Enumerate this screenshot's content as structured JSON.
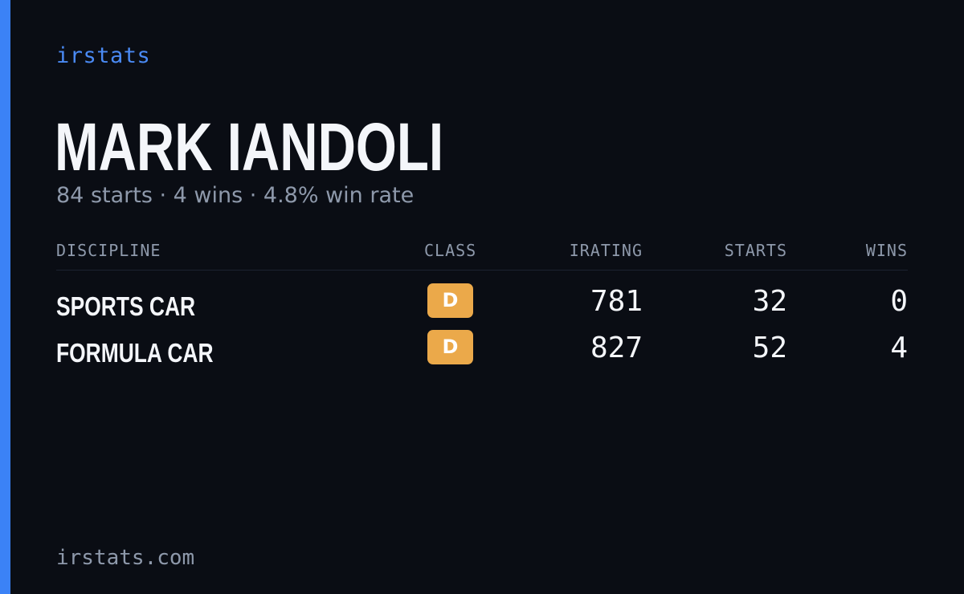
{
  "brand": "irstats",
  "driver": {
    "name": "MARK IANDOLI",
    "summary": "84 starts · 4 wins · 4.8% win rate"
  },
  "table": {
    "headers": {
      "discipline": "DISCIPLINE",
      "class": "CLASS",
      "irating": "IRATING",
      "starts": "STARTS",
      "wins": "WINS"
    },
    "rows": [
      {
        "discipline": "SPORTS CAR",
        "class": "D",
        "irating": "781",
        "starts": "32",
        "wins": "0"
      },
      {
        "discipline": "FORMULA CAR",
        "class": "D",
        "irating": "827",
        "starts": "52",
        "wins": "4"
      }
    ]
  },
  "footer": "irstats.com",
  "colors": {
    "background": "#0a0d14",
    "accent": "#3b82f6",
    "class_d_badge": "#eba94a"
  }
}
